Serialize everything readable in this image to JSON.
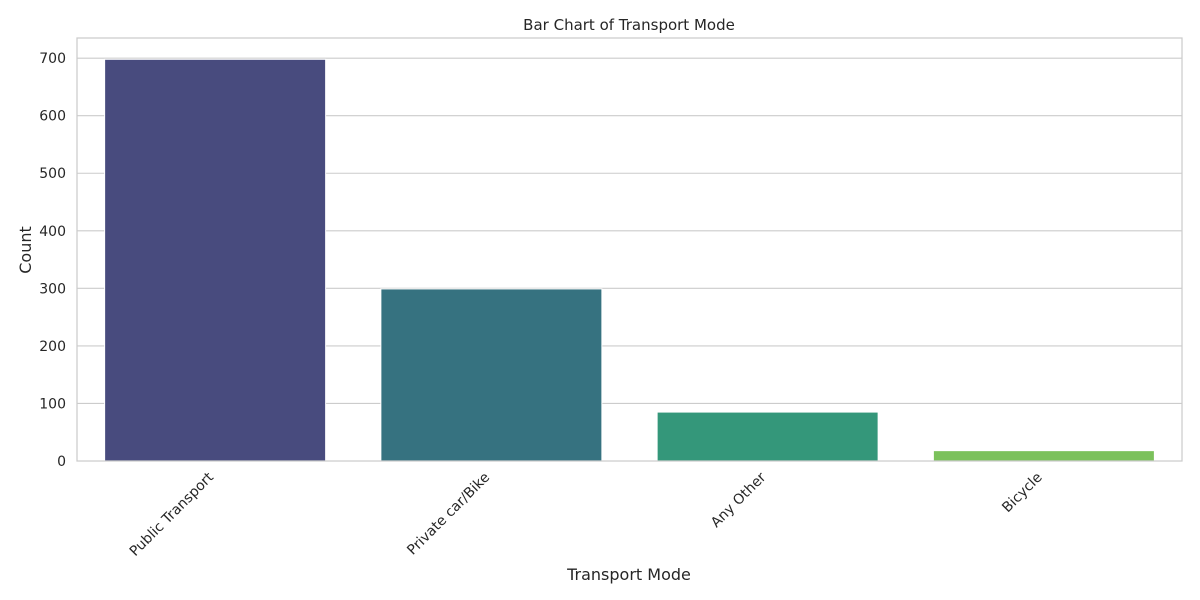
{
  "chart_data": {
    "type": "bar",
    "title": "Bar Chart of Transport Mode",
    "xlabel": "Transport Mode",
    "ylabel": "Count",
    "categories": [
      "Public Transport",
      "Private car/Bike",
      "Any Other",
      "Bicycle"
    ],
    "values": [
      698,
      299,
      85,
      18
    ],
    "colors": [
      "#482677",
      "#2d708e",
      "#29af7f",
      "#73d055"
    ],
    "bar_colors": [
      "#484b7e",
      "#367280",
      "#34977a",
      "#7bc15b"
    ],
    "ylim": [
      0,
      735
    ],
    "yticks": [
      0,
      100,
      200,
      300,
      400,
      500,
      600,
      700
    ],
    "grid": true,
    "frame_color": "#cccccc",
    "grid_color": "#cccccc"
  }
}
